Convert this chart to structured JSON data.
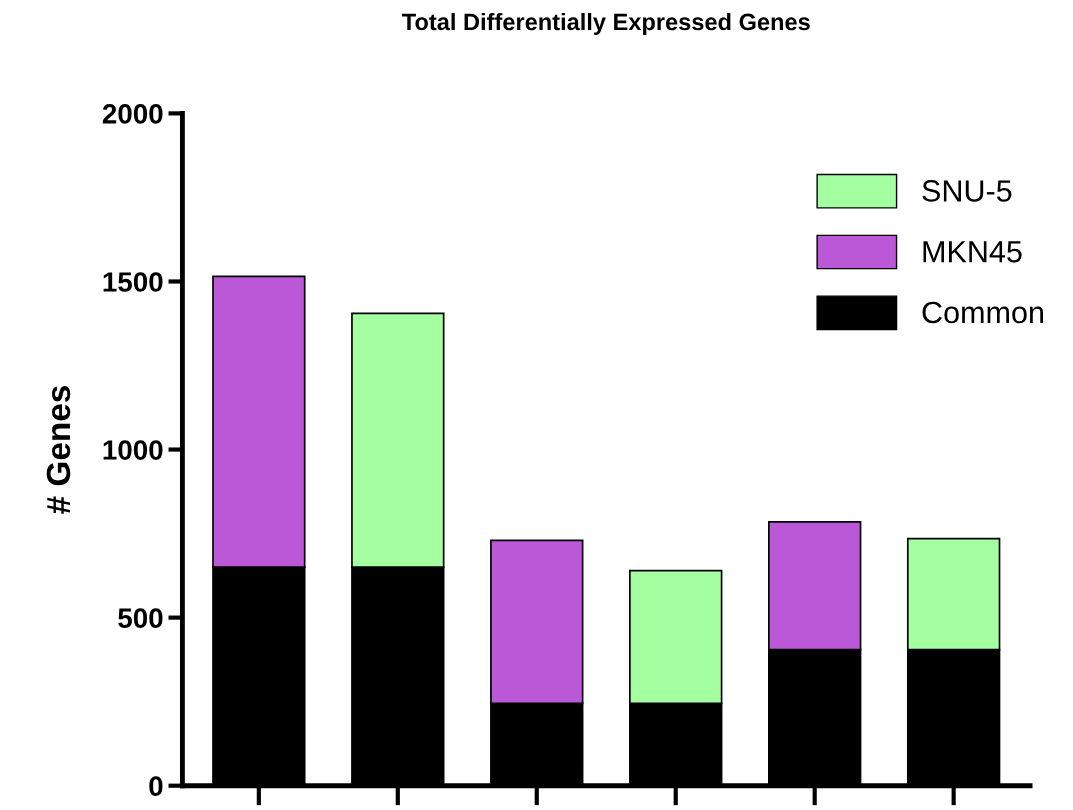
{
  "chart_data": {
    "type": "bar",
    "title": "Total Differentially Expressed Genes",
    "ylabel": "# Genes",
    "categories": [
      null,
      null,
      null,
      null,
      null,
      null
    ],
    "stacked": true,
    "series": [
      {
        "name": "Common",
        "color": "#000000",
        "values": [
          650,
          650,
          245,
          245,
          405,
          405
        ]
      },
      {
        "name": "MKN45",
        "color": "#ba58d8",
        "values": [
          865,
          null,
          485,
          null,
          380,
          null
        ]
      },
      {
        "name": "SNU-5",
        "color": "#a3ffa0",
        "values": [
          null,
          755,
          null,
          395,
          null,
          330
        ]
      }
    ],
    "ylim": [
      0,
      2000
    ],
    "yticks": [
      0,
      500,
      1000,
      1500,
      2000
    ],
    "tick_labels": "y",
    "grid": false,
    "legend": "top right"
  }
}
